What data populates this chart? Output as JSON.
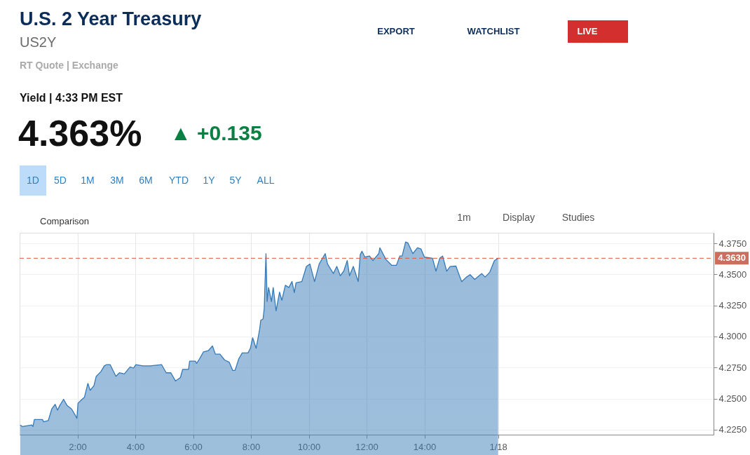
{
  "chart_data": {
    "type": "area",
    "title": "U.S. 2 Year Treasury",
    "subtitle": "US2Y",
    "annotations": [
      "RT Quote | Exchange",
      "Yield | 4:33 PM EST",
      "4.363%",
      "▲ +0.135",
      "EXPORT",
      "WATCHLIST",
      "LIVE",
      "1D",
      "5D",
      "1M",
      "3M",
      "6M",
      "YTD",
      "1Y",
      "5Y",
      "ALL",
      "Comparison",
      "1m",
      "Display",
      "Studies"
    ],
    "x": [
      0.02,
      0.1,
      0.42,
      0.46,
      0.51,
      0.79,
      0.83,
      0.99,
      1.11,
      1.23,
      1.31,
      1.39,
      1.52,
      1.64,
      1.8,
      1.94,
      1.98,
      2.02,
      2.16,
      2.24,
      2.36,
      2.44,
      2.57,
      2.65,
      2.81,
      2.93,
      3.01,
      3.13,
      3.21,
      3.33,
      3.45,
      3.62,
      3.82,
      3.94,
      4.02,
      4.26,
      4.51,
      4.91,
      5.07,
      5.23,
      5.39,
      5.56,
      5.64,
      5.84,
      5.88,
      6.08,
      6.12,
      6.2,
      6.36,
      6.53,
      6.67,
      6.77,
      6.93,
      7.09,
      7.25,
      7.37,
      7.45,
      7.58,
      7.7,
      7.9,
      7.98,
      8.06,
      8.18,
      8.3,
      8.34,
      8.42,
      8.46,
      8.52,
      8.56,
      8.61,
      8.71,
      8.77,
      8.87,
      8.99,
      9.07,
      9.19,
      9.31,
      9.42,
      9.5,
      9.56,
      9.76,
      9.92,
      10.04,
      10.2,
      10.36,
      10.57,
      10.65,
      10.85,
      10.97,
      11.09,
      11.21,
      11.33,
      11.41,
      11.54,
      11.71,
      11.78,
      11.84,
      11.94,
      12.1,
      12.22,
      12.42,
      12.46,
      12.67,
      12.87,
      13.03,
      13.15,
      13.23,
      13.35,
      13.43,
      13.6,
      13.76,
      13.88,
      14.0,
      14.28,
      14.4,
      14.53,
      14.63,
      14.77,
      14.89,
      15.09,
      15.21,
      15.29,
      15.46,
      15.58,
      15.74,
      15.98,
      16.1,
      16.26,
      16.34,
      16.42,
      16.55
    ],
    "series": [
      {
        "color": "#3579b6",
        "values": [
          4.2288,
          4.2275,
          4.2288,
          4.2275,
          4.2332,
          4.2332,
          4.2313,
          4.2323,
          4.2416,
          4.2454,
          4.2407,
          4.2445,
          4.2495,
          4.2445,
          4.2416,
          4.236,
          4.2341,
          4.2463,
          4.2495,
          4.251,
          4.2623,
          4.2567,
          4.2604,
          4.268,
          4.2717,
          4.2764,
          4.2774,
          4.2774,
          4.2736,
          4.268,
          4.2708,
          4.2699,
          4.2755,
          4.2746,
          4.2774,
          4.2764,
          4.2764,
          4.2774,
          4.2708,
          4.2708,
          4.2642,
          4.267,
          4.2736,
          4.2736,
          4.2802,
          4.2802,
          4.2783,
          4.2811,
          4.2877,
          4.2887,
          4.2924,
          4.2858,
          4.2858,
          4.2811,
          4.2793,
          4.2727,
          4.2727,
          4.2821,
          4.2868,
          4.2868,
          4.2905,
          4.299,
          4.2905,
          4.3056,
          4.3131,
          4.3141,
          4.3225,
          4.3667,
          4.3282,
          4.3394,
          4.3282,
          4.3394,
          4.3206,
          4.3357,
          4.3291,
          4.3413,
          4.3394,
          4.3442,
          4.3353,
          4.3432,
          4.3442,
          4.3564,
          4.3583,
          4.3442,
          4.3583,
          4.3667,
          4.3583,
          4.3507,
          4.3564,
          4.3489,
          4.3526,
          4.3611,
          4.3489,
          4.3564,
          4.3442,
          4.3658,
          4.3686,
          4.3639,
          4.3648,
          4.3611,
          4.3667,
          4.3714,
          4.362,
          4.3573,
          4.3573,
          4.3648,
          4.3648,
          4.3761,
          4.3752,
          4.3667,
          4.3714,
          4.3705,
          4.3639,
          4.363,
          4.3526,
          4.363,
          4.3648,
          4.3526,
          4.3564,
          4.3567,
          4.3489,
          4.3442,
          4.3479,
          4.3498,
          4.346,
          4.3507,
          4.3479,
          4.3517,
          4.3564,
          4.3611,
          4.363
        ]
      }
    ],
    "xlim": [
      0,
      24
    ],
    "ylim": [
      4.221,
      4.3835
    ],
    "xticks": [
      {
        "value": 2,
        "label": "2:00"
      },
      {
        "value": 4,
        "label": "4:00"
      },
      {
        "value": 6,
        "label": "6:00"
      },
      {
        "value": 8,
        "label": "8:00"
      },
      {
        "value": 10,
        "label": "10:00"
      },
      {
        "value": 12,
        "label": "12:00"
      },
      {
        "value": 14,
        "label": "14:00"
      },
      {
        "value": 16.55,
        "label": "1/18"
      }
    ],
    "yticks": [
      {
        "value": 4.225,
        "label": "4.2250"
      },
      {
        "value": 4.25,
        "label": "4.2500"
      },
      {
        "value": 4.275,
        "label": "4.2750"
      },
      {
        "value": 4.3,
        "label": "4.3000"
      },
      {
        "value": 4.325,
        "label": "4.3250"
      },
      {
        "value": 4.35,
        "label": "4.3500"
      },
      {
        "value": 4.375,
        "label": "4.3750"
      }
    ],
    "ref_lines": [
      {
        "axis": "y",
        "value": 4.363,
        "label": "4.3630",
        "color": "#e0563a",
        "line_style": "dashed"
      }
    ],
    "grid": true
  }
}
